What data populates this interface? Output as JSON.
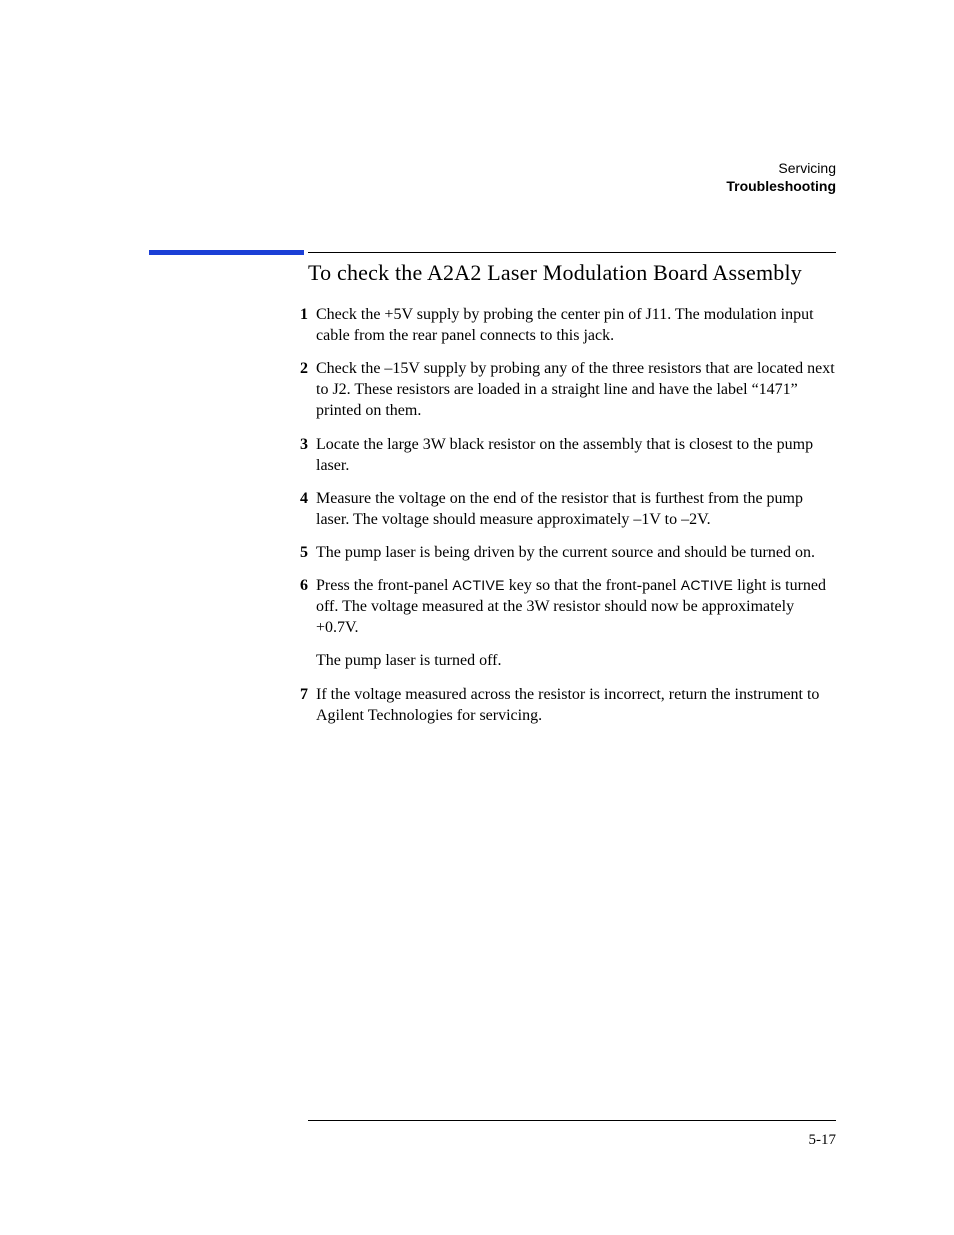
{
  "colors": {
    "background": "#ffffff",
    "text": "#000000",
    "accent_rule": "#1b3fd6",
    "rule": "#000000"
  },
  "typography": {
    "body_family": "Times New Roman",
    "body_size_pt": 12,
    "heading_family": "Times New Roman",
    "heading_size_pt": 16,
    "header_family": "Arial",
    "header_size_pt": 10,
    "key_family": "Arial",
    "key_size_pt": 11
  },
  "header": {
    "line1": "Servicing",
    "line2": "Troubleshooting"
  },
  "heading": "To check the A2A2 Laser Modulation Board Assembly",
  "steps": [
    {
      "num": "1",
      "text": "Check the +5V supply by probing the center pin of J11. The modulation input cable from the rear panel connects to this jack."
    },
    {
      "num": "2",
      "text": "Check the –15V supply by probing any of the three resistors that are located next to J2. These resistors are loaded in a straight line and have the label “1471” printed on them."
    },
    {
      "num": "3",
      "text": "Locate the large 3W black resistor on the assembly that is closest to the pump laser."
    },
    {
      "num": "4",
      "text": "Measure the voltage on the end of the resistor that is furthest from the pump laser. The voltage should measure approximately –1V to –2V."
    },
    {
      "num": "5",
      "text": "The pump laser is being driven by the current source and should be turned on."
    },
    {
      "num": "6",
      "text_parts": {
        "pre1": "Press the front-panel ",
        "key1": "ACTIVE",
        "mid": " key so that the front-panel ",
        "key2": "ACTIVE",
        "post": " light is turned off. The voltage measured at the 3W resistor should now be approximately +0.7V."
      },
      "note": "The pump laser is turned off."
    },
    {
      "num": "7",
      "text": "If the voltage measured across the resistor is incorrect, return the instrument to Agilent Technologies for servicing."
    }
  ],
  "page_number": "5-17"
}
